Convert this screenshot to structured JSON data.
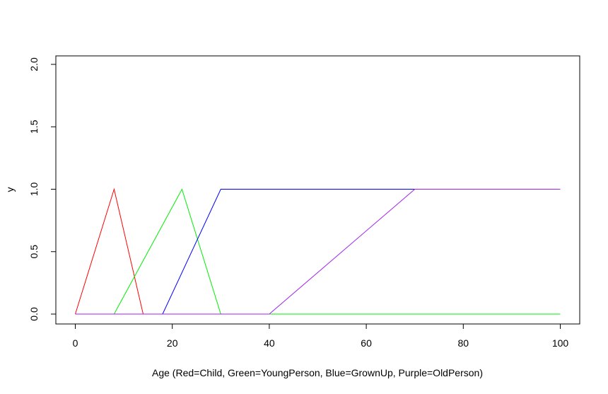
{
  "chart_data": {
    "type": "line",
    "title": "",
    "xlabel": "Age (Red=Child, Green=YoungPerson, Blue=GrownUp, Purple=OldPerson)",
    "ylabel": "y",
    "xlim": [
      0,
      100
    ],
    "ylim": [
      0,
      2
    ],
    "x_ticks": [
      {
        "value": 0,
        "label": "0"
      },
      {
        "value": 20,
        "label": "20"
      },
      {
        "value": 40,
        "label": "40"
      },
      {
        "value": 60,
        "label": "60"
      },
      {
        "value": 80,
        "label": "80"
      },
      {
        "value": 100,
        "label": "100"
      }
    ],
    "y_ticks": [
      {
        "value": 0,
        "label": "0.0"
      },
      {
        "value": 0.5,
        "label": "0.5"
      },
      {
        "value": 1,
        "label": "1.0"
      },
      {
        "value": 1.5,
        "label": "1.5"
      },
      {
        "value": 2,
        "label": "2.0"
      }
    ],
    "grid": false,
    "legend": "none",
    "series": [
      {
        "color": "#ff0000",
        "x": [
          0,
          8,
          14,
          100
        ],
        "y": [
          0,
          1,
          0,
          0
        ]
      },
      {
        "color": "#00ee00",
        "x": [
          0,
          8,
          22,
          30,
          100
        ],
        "y": [
          0,
          0,
          1,
          0,
          0
        ]
      },
      {
        "color": "#0000ff",
        "x": [
          0,
          18,
          30,
          100
        ],
        "y": [
          0,
          0,
          1,
          1
        ]
      },
      {
        "color": "#a020f0",
        "x": [
          0,
          40,
          70,
          100
        ],
        "y": [
          0,
          0,
          1,
          1
        ]
      }
    ]
  }
}
